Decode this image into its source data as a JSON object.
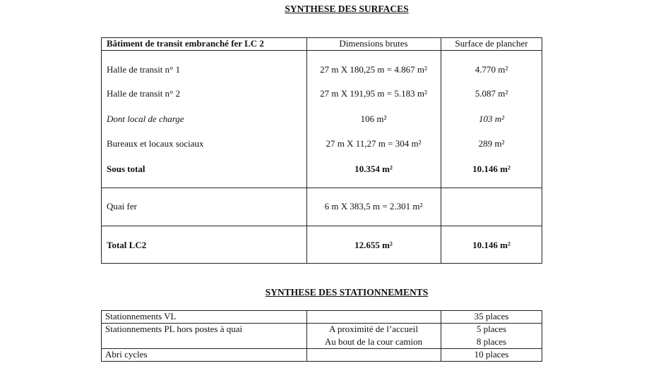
{
  "surfaces": {
    "title": "SYNTHESE DES SURFACES",
    "headers": [
      "Bâtiment de transit embranché fer LC 2",
      "Dimensions brutes",
      "Surface de plancher"
    ],
    "rows": [
      {
        "label": "Halle de transit n° 1",
        "dims": "27 m X 180,25 m = 4.867 m²",
        "surface": "4.770 m²"
      },
      {
        "label": "Halle de transit n° 2",
        "dims": "27 m X 191,95 m = 5.183 m²",
        "surface": "5.087 m²"
      },
      {
        "label": "Dont local de charge",
        "dims": "106 m²",
        "surface": "103 m²"
      },
      {
        "label": "Bureaux et locaux sociaux",
        "dims": "27 m X 11,27 m = 304 m²",
        "surface": "289 m²"
      },
      {
        "label": "Sous total",
        "dims": "10.354 m²",
        "surface": "10.146 m²"
      },
      {
        "label": "Quai fer",
        "dims": "6 m X 383,5 m = 2.301 m²",
        "surface": ""
      },
      {
        "label": "Total LC2",
        "dims": "12.655 m²",
        "surface": "10.146 m²"
      }
    ]
  },
  "parking": {
    "title": "SYNTHESE DES STATIONNEMENTS",
    "rows": [
      {
        "label": "Stationnements VL",
        "location": "",
        "places": "35 places"
      },
      {
        "label": "Stationnements PL hors postes à quai",
        "location": "A proximité de l’accueil",
        "places": "5 places"
      },
      {
        "label": "",
        "location": "Au bout de la cour camion",
        "places": "8 places"
      },
      {
        "label": "Abri cycles",
        "location": "",
        "places": "10 places"
      }
    ]
  }
}
